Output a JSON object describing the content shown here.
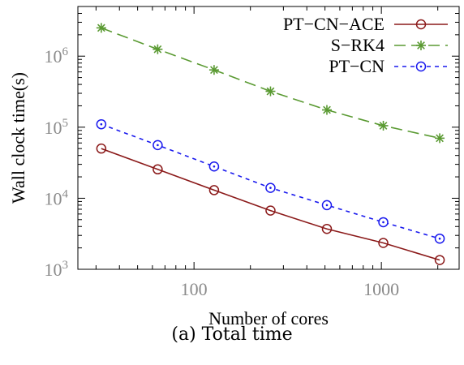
{
  "caption": "(a) Total time",
  "chart_data": {
    "type": "line",
    "title": "",
    "xlabel": "Number of cores",
    "ylabel": "Wall clock time(s)",
    "x_scale": "log",
    "y_scale": "log",
    "xlim": [
      24,
      2600
    ],
    "ylim": [
      1000,
      5000000
    ],
    "x_ticks": [
      {
        "value": 100,
        "label": "100"
      },
      {
        "value": 1000,
        "label": "1000"
      }
    ],
    "y_ticks": [
      {
        "value": 1000,
        "base": "10",
        "exp": "3"
      },
      {
        "value": 10000,
        "base": "10",
        "exp": "4"
      },
      {
        "value": 100000,
        "base": "10",
        "exp": "5"
      },
      {
        "value": 1000000,
        "base": "10",
        "exp": "6"
      }
    ],
    "x": [
      32,
      64,
      128,
      256,
      512,
      1024,
      2048
    ],
    "legend_position": "top-right",
    "series": [
      {
        "name": "PT−CN−ACE",
        "color": "#8b1a1a",
        "dash": "solid",
        "marker": "circle-open",
        "values": [
          50000,
          25500,
          13000,
          6700,
          3700,
          2350,
          1350
        ]
      },
      {
        "name": "S−RK4",
        "color": "#5a9a32",
        "dash": "long-dash",
        "marker": "asterisk",
        "values": [
          2500000,
          1250000,
          640000,
          320000,
          175000,
          105000,
          70000
        ]
      },
      {
        "name": "PT−CN",
        "color": "#1a1aee",
        "dash": "short-dash",
        "marker": "circle-dot",
        "values": [
          110000,
          56000,
          28000,
          14000,
          8000,
          4600,
          2700
        ]
      }
    ]
  }
}
